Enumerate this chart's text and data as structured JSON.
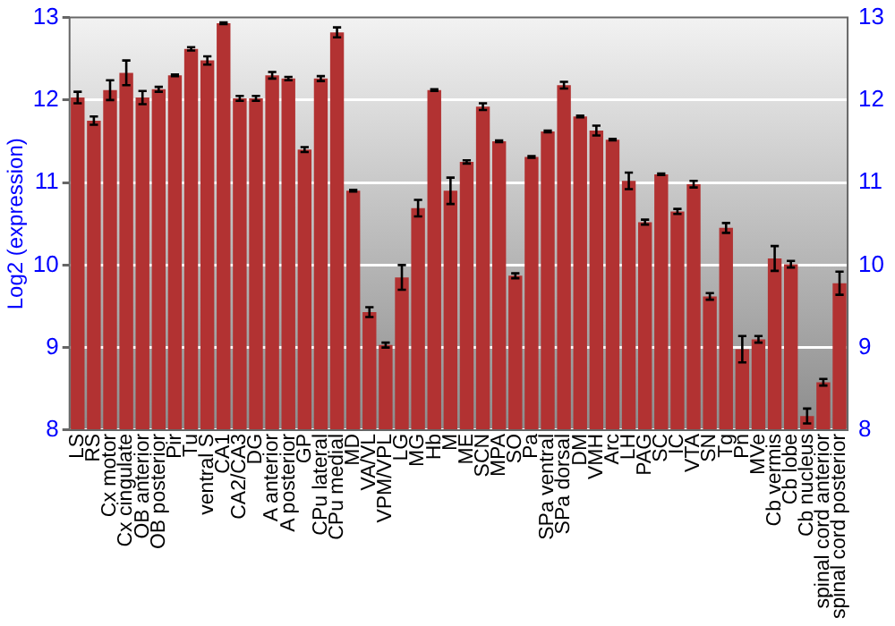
{
  "chart_data": {
    "type": "bar",
    "ylabel": "Log2 (expression)",
    "categories": [
      "LS",
      "RS",
      "Cx motor",
      "Cx cingulate",
      "OB anterior",
      "OB posterior",
      "Pir",
      "Tu",
      "ventral S",
      "CA1",
      "CA2/CA3",
      "DG",
      "A anterior",
      "A posterior",
      "GP",
      "CPu lateral",
      "CPu medial",
      "MD",
      "VA/VL",
      "VPM/VPL",
      "LG",
      "MG",
      "Hb",
      "M",
      "ME",
      "SCN",
      "MPA",
      "SO",
      "Pa",
      "SPa ventral",
      "SPa dorsal",
      "DM",
      "VMH",
      "Arc",
      "LH",
      "PAG",
      "SC",
      "IC",
      "VTA",
      "SN",
      "Tg",
      "Pn",
      "MVe",
      "Cb vermis",
      "Cb lobe",
      "Cb nucleus",
      "spinal cord anterior",
      "spinal cord posterior"
    ],
    "values": [
      12.03,
      11.75,
      12.12,
      12.33,
      12.03,
      12.13,
      12.3,
      12.62,
      12.48,
      12.93,
      12.02,
      12.02,
      12.3,
      12.26,
      11.4,
      12.26,
      12.82,
      10.9,
      9.43,
      9.03,
      9.85,
      10.69,
      12.12,
      10.9,
      11.25,
      11.92,
      11.5,
      9.87,
      11.31,
      11.62,
      12.18,
      11.8,
      11.63,
      11.52,
      11.02,
      10.52,
      11.1,
      10.65,
      10.98,
      9.62,
      10.45,
      8.98,
      9.1,
      10.08,
      10.01,
      8.17,
      8.58,
      9.78
    ],
    "errors": [
      0.07,
      0.05,
      0.12,
      0.15,
      0.08,
      0.03,
      0.01,
      0.02,
      0.05,
      0.01,
      0.03,
      0.03,
      0.04,
      0.02,
      0.03,
      0.03,
      0.06,
      0.01,
      0.06,
      0.03,
      0.15,
      0.1,
      0.01,
      0.16,
      0.02,
      0.04,
      0.01,
      0.03,
      0.01,
      0.01,
      0.04,
      0.01,
      0.06,
      0.01,
      0.1,
      0.03,
      0.01,
      0.03,
      0.04,
      0.04,
      0.06,
      0.16,
      0.04,
      0.15,
      0.04,
      0.09,
      0.04,
      0.14
    ],
    "color": "#b23232",
    "ylim": [
      8,
      13
    ],
    "yticks": [
      8,
      9,
      10,
      11,
      12,
      13
    ],
    "y2lim": [
      8,
      13
    ],
    "y2ticks": [
      8,
      9,
      10,
      11,
      12,
      13
    ],
    "grid": "y"
  }
}
